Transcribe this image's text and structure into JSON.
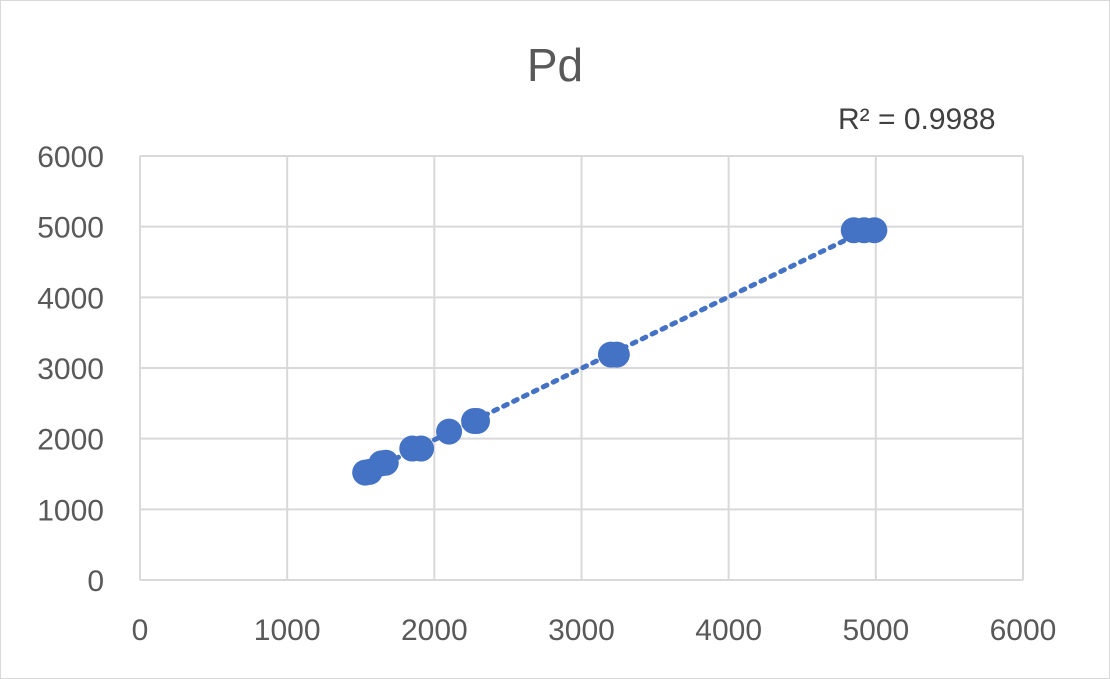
{
  "chart_data": {
    "type": "scatter",
    "title": "Pd",
    "annotation": "R² = 0.9988",
    "xlim": [
      0,
      6000
    ],
    "ylim": [
      0,
      6000
    ],
    "x_ticks": [
      "0",
      "1000",
      "2000",
      "3000",
      "4000",
      "5000",
      "6000"
    ],
    "y_ticks": [
      "0",
      "1000",
      "2000",
      "3000",
      "4000",
      "5000",
      "6000"
    ],
    "grid": true,
    "legend": "none",
    "series": [
      {
        "color": "#4472C4",
        "points": [
          {
            "x": 1530,
            "y": 1520
          },
          {
            "x": 1560,
            "y": 1530
          },
          {
            "x": 1640,
            "y": 1650
          },
          {
            "x": 1670,
            "y": 1660
          },
          {
            "x": 1850,
            "y": 1860
          },
          {
            "x": 1910,
            "y": 1860
          },
          {
            "x": 2100,
            "y": 2100
          },
          {
            "x": 2270,
            "y": 2250
          },
          {
            "x": 2290,
            "y": 2250
          },
          {
            "x": 3200,
            "y": 3190
          },
          {
            "x": 3240,
            "y": 3190
          },
          {
            "x": 4850,
            "y": 4950
          },
          {
            "x": 4920,
            "y": 4950
          },
          {
            "x": 4990,
            "y": 4950
          }
        ]
      }
    ],
    "trendline": {
      "style": "dotted",
      "color": "#4472C4",
      "x_start": 1530,
      "x_end": 4990
    }
  }
}
